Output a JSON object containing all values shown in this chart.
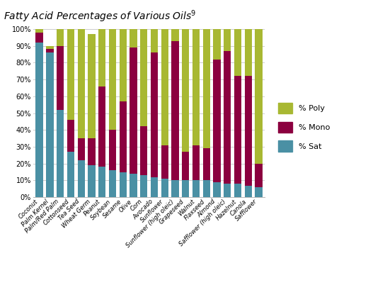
{
  "title": "Fatty Acid Percentages of Various Oils",
  "title_superscript": "9",
  "categories": [
    "Coconut",
    "Palm Kernel",
    "Palm/Red Palm",
    "Cottonseed",
    "Tea Seed",
    "Wheat Germ",
    "Peanut",
    "Soybean",
    "Sesame",
    "Olive",
    "Corn",
    "Avocado",
    "Sunflower",
    "Sunflower (high oleic)",
    "Grapeseed",
    "Walnut",
    "Flaxseed",
    "Almond",
    "Safflower (high oleic)",
    "Hazelnut",
    "Canola",
    "Safflower"
  ],
  "sat": [
    92,
    86,
    52,
    27,
    22,
    19,
    18,
    16,
    15,
    14,
    13,
    12,
    11,
    10,
    10,
    10,
    10,
    9,
    8,
    8,
    7,
    6
  ],
  "mono": [
    6,
    2,
    38,
    19,
    13,
    16,
    48,
    24,
    42,
    75,
    29,
    74,
    20,
    83,
    17,
    21,
    19,
    73,
    79,
    64,
    65,
    14
  ],
  "poly": [
    2,
    2,
    10,
    54,
    65,
    62,
    34,
    60,
    43,
    11,
    58,
    14,
    69,
    7,
    73,
    69,
    71,
    18,
    13,
    28,
    28,
    80
  ],
  "color_sat": "#4a90a4",
  "color_mono": "#8b003f",
  "color_poly": "#a8b832",
  "background_color": "#ffffff",
  "grid_color": "#cccccc",
  "ylim": [
    0,
    100
  ],
  "legend_labels": [
    "% Poly",
    "% Mono",
    "% Sat"
  ],
  "yticks": [
    0,
    10,
    20,
    30,
    40,
    50,
    60,
    70,
    80,
    90,
    100
  ]
}
